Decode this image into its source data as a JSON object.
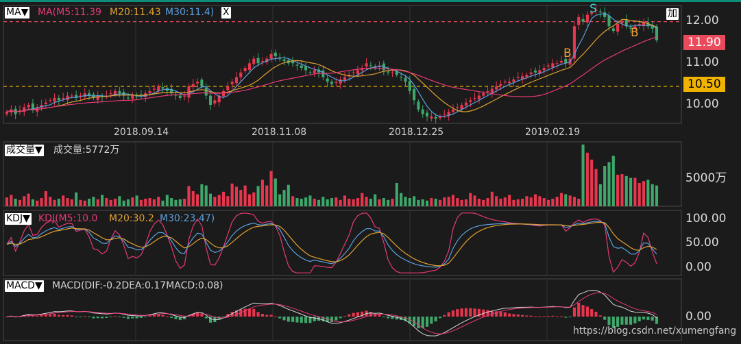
{
  "panels": {
    "ma": {
      "menu_label": "MA▼",
      "header": "MA(M5:11.39",
      "m20": "M20:11.43",
      "m30": "M30:11.4)",
      "close_label": "X",
      "add_label": "加",
      "y_ticks": [
        "12.00",
        "11.00",
        "10.00"
      ],
      "price_tags": [
        {
          "value": "11.90",
          "color": "#e84b5c"
        },
        {
          "value": "10.50",
          "color": "#f0b400"
        }
      ],
      "dates": [
        "2018.09.14",
        "2018.11.08",
        "2018.12.25",
        "2019.02.19"
      ],
      "signals": [
        {
          "text": "B",
          "color": "#f0a030"
        },
        {
          "text": "S",
          "color": "#3ec8c8"
        },
        {
          "text": "B",
          "color": "#f0a030"
        }
      ]
    },
    "volume": {
      "menu_label": "成交量▼",
      "header": "成交量:5772万",
      "y_tick": "5000万"
    },
    "kdj": {
      "menu_label": "KDJ▼",
      "header": "KDJ(M5:10.0",
      "m20": "M20:30.2",
      "m30": "M30:23.47)",
      "y_ticks": [
        "100.00",
        "50.00",
        "0.00"
      ]
    },
    "macd": {
      "menu_label": "MACD▼",
      "header": "MACD(DIF:-0.2DEA:0.17MACD:0.08)",
      "y_tick": "0.00"
    }
  },
  "watermark": "https://blog.csdn.net/xumengfang",
  "colors": {
    "up": "#e8364f",
    "down": "#3ea86b",
    "m5": "#e8397a",
    "m20": "#e0a030",
    "m30": "#5aa0e0"
  },
  "chart_data": [
    {
      "type": "candlestick",
      "title": "MA",
      "y_ticks": [
        12.0,
        11.0,
        10.0
      ],
      "ylim": [
        9.7,
        12.25
      ],
      "reference_lines": [
        11.9,
        10.5
      ],
      "x_tick_labels": [
        "2018.09.14",
        "2018.11.08",
        "2018.12.25",
        "2019.02.19"
      ],
      "close_approx": [
        9.95,
        10.0,
        9.9,
        9.98,
        10.05,
        10.1,
        10.0,
        10.05,
        10.1,
        10.15,
        10.2,
        10.25,
        10.2,
        10.25,
        10.3,
        10.3,
        10.25,
        10.3,
        10.35,
        10.3,
        10.25,
        10.3,
        10.28,
        10.3,
        10.35,
        10.4,
        10.35,
        10.3,
        10.25,
        10.3,
        10.28,
        10.3,
        10.35,
        10.4,
        10.45,
        10.5,
        10.45,
        10.4,
        10.35,
        10.3,
        10.25,
        10.3,
        10.5,
        10.55,
        10.6,
        10.5,
        10.3,
        10.1,
        10.2,
        10.3,
        10.4,
        10.5,
        10.6,
        10.7,
        10.8,
        10.9,
        11.0,
        11.1,
        11.0,
        11.05,
        11.1,
        11.2,
        11.15,
        11.1,
        11.05,
        11.0,
        11.0,
        10.95,
        10.9,
        10.85,
        10.8,
        10.85,
        10.8,
        10.7,
        10.6,
        10.55,
        10.6,
        10.65,
        10.7,
        10.75,
        10.8,
        10.85,
        10.9,
        11.0,
        10.95,
        10.9,
        10.95,
        10.85,
        10.8,
        10.8,
        10.75,
        10.7,
        10.6,
        10.4,
        10.2,
        10.0,
        9.9,
        9.85,
        9.85,
        9.8,
        9.85,
        9.9,
        9.95,
        10.0,
        10.05,
        10.1,
        10.15,
        10.2,
        10.25,
        10.3,
        10.35,
        10.4,
        10.45,
        10.5,
        10.55,
        10.6,
        10.6,
        10.65,
        10.7,
        10.72,
        10.75,
        10.8,
        10.8,
        10.85,
        10.9,
        10.95,
        11.0,
        11.0,
        11.05,
        11.0,
        11.1,
        11.8,
        12.0,
        11.9,
        12.05,
        12.1,
        12.15,
        12.1,
        12.0,
        11.8,
        11.7,
        11.85,
        11.9,
        11.8,
        11.75,
        11.8,
        11.85,
        11.9,
        11.8,
        11.75,
        11.5
      ],
      "series": [
        {
          "name": "M5",
          "last": 11.39
        },
        {
          "name": "M20",
          "last": 11.43
        },
        {
          "name": "M30",
          "last": 11.4
        }
      ],
      "signals": [
        "B",
        "S",
        "B"
      ]
    },
    {
      "type": "bar",
      "title": "成交量",
      "last_value": 5772,
      "unit": "万",
      "y_ticks": [
        5000
      ],
      "values_approx": [
        1400,
        1800,
        1200,
        1000,
        1600,
        2000,
        1100,
        900,
        1300,
        2400,
        1500,
        1000,
        1200,
        1700,
        1300,
        1100,
        2200,
        1000,
        900,
        1200,
        1500,
        1100,
        1800,
        1300,
        1000,
        1200,
        1600,
        900,
        1100,
        1400,
        1700,
        1000,
        1200,
        1300,
        1100,
        1500,
        900,
        1800,
        1300,
        1000,
        1100,
        1200,
        3200,
        2400,
        1900,
        3500,
        3300,
        2000,
        1500,
        1800,
        2300,
        1600,
        3600,
        3100,
        2600,
        3300,
        1900,
        2200,
        3200,
        4200,
        3300,
        5600,
        4400,
        1900,
        2600,
        3400,
        1600,
        1300,
        1200,
        1400,
        1700,
        1200,
        1000,
        1500,
        1100,
        1300,
        1400,
        1000,
        1700,
        1200,
        1100,
        1300,
        2100,
        1500,
        1200,
        1900,
        1100,
        1300,
        1000,
        1200,
        3700,
        2100,
        1500,
        1300,
        1600,
        1000,
        1100,
        900,
        1300,
        1200,
        1000,
        1400,
        1500,
        1800,
        1300,
        1000,
        1100,
        2100,
        1700,
        1200,
        1000,
        1300,
        2300,
        1600,
        1200,
        1400,
        1800,
        1000,
        1100,
        1200,
        1600,
        1400,
        1900,
        1600,
        1300,
        1000,
        1200,
        1500,
        2100,
        1900,
        1700,
        1500,
        1200,
        9800,
        8500,
        7400,
        5900,
        3500,
        6400,
        7000,
        8000,
        5000,
        5100,
        4800,
        4500,
        4500,
        3700,
        4000,
        4200,
        3500,
        3300,
        4100,
        5772
      ]
    },
    {
      "type": "line",
      "title": "KDJ",
      "ylim": [
        -10,
        115
      ],
      "y_ticks": [
        100,
        50,
        0
      ],
      "series": [
        {
          "name": "M5",
          "last": 10.0
        },
        {
          "name": "M20",
          "last": 30.2
        },
        {
          "name": "M30",
          "last": 23.47
        }
      ]
    },
    {
      "type": "bar",
      "title": "MACD",
      "y_ticks": [
        0
      ],
      "series": [
        {
          "name": "DIF",
          "last": -0.2
        },
        {
          "name": "DEA",
          "last": 0.17
        },
        {
          "name": "MACD",
          "last": 0.08
        }
      ]
    }
  ]
}
